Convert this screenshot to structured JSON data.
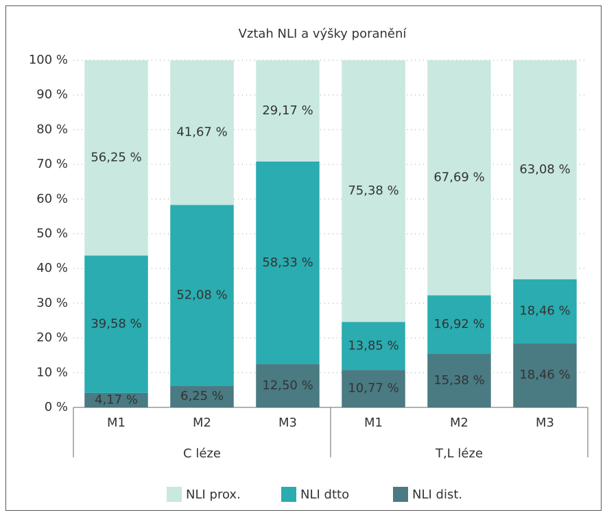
{
  "chart_data": {
    "type": "stacked_bar",
    "title": "Vztah NLI a výšky poranění",
    "categories": [
      "M1",
      "M2",
      "M3",
      "M1",
      "M2",
      "M3"
    ],
    "groups": [
      "C léze",
      "T,L léze"
    ],
    "series": [
      {
        "name": "NLI prox.",
        "color": "#c8e8e0",
        "values": [
          56.25,
          41.67,
          29.17,
          75.38,
          67.69,
          63.08
        ],
        "value_labels": [
          "56,25 %",
          "41,67 %",
          "29,17 %",
          "75,38 %",
          "67,69 %",
          "63,08 %"
        ]
      },
      {
        "name": "NLI dtto",
        "color": "#2aacb0",
        "values": [
          39.58,
          52.08,
          58.33,
          13.85,
          16.92,
          18.46
        ],
        "value_labels": [
          "39,58 %",
          "52,08 %",
          "58,33 %",
          "13,85 %",
          "16,92 %",
          "18,46 %"
        ]
      },
      {
        "name": "NLI dist.",
        "color": "#4a7a82",
        "values": [
          4.17,
          6.25,
          12.5,
          10.77,
          15.38,
          18.46
        ],
        "value_labels": [
          "4,17 %",
          "6,25 %",
          "12,50 %",
          "10,77 %",
          "15,38 %",
          "18,46 %"
        ]
      }
    ],
    "ylim": [
      0,
      100
    ],
    "yticks": [
      {
        "value": 0,
        "label": "0 %"
      },
      {
        "value": 10,
        "label": "10 %"
      },
      {
        "value": 20,
        "label": "20 %"
      },
      {
        "value": 30,
        "label": "30 %"
      },
      {
        "value": 40,
        "label": "40 %"
      },
      {
        "value": 50,
        "label": "50 %"
      },
      {
        "value": 60,
        "label": "60 %"
      },
      {
        "value": 70,
        "label": "70 %"
      },
      {
        "value": 80,
        "label": "80 %"
      },
      {
        "value": 90,
        "label": "90 %"
      },
      {
        "value": 100,
        "label": "100 %"
      }
    ],
    "grid": true,
    "legend": "bottom"
  }
}
